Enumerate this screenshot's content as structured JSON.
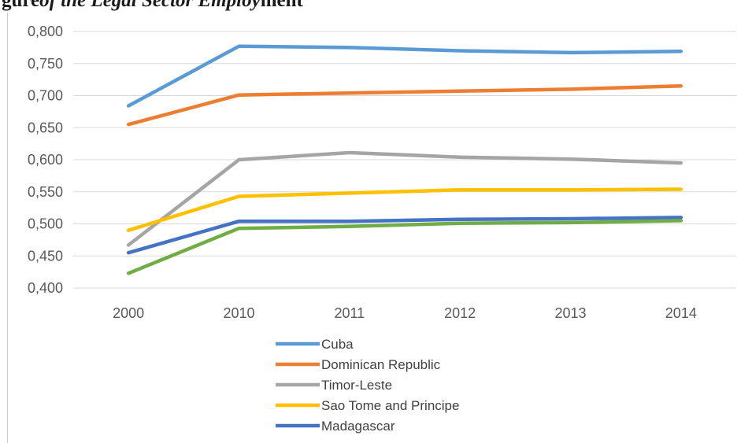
{
  "figure": {
    "cut_title_lead": "gure",
    "cut_title_italic": "of the Legal Sector Employ",
    "cut_title_tail": "ment"
  },
  "chart_data": {
    "type": "line",
    "categories": [
      "2000",
      "2010",
      "2011",
      "2012",
      "2013",
      "2014"
    ],
    "ylim": [
      0.4,
      0.8
    ],
    "yticks": [
      "0,400",
      "0,450",
      "0,500",
      "0,550",
      "0,600",
      "0,650",
      "0,700",
      "0,750",
      "0,800"
    ],
    "grid": true,
    "legend_position": "bottom",
    "series": [
      {
        "name": "Cuba",
        "color": "#5B9BD5",
        "values": [
          0.684,
          0.777,
          0.775,
          0.77,
          0.767,
          0.769
        ]
      },
      {
        "name": "Dominican Republic",
        "color": "#ED7D31",
        "values": [
          0.655,
          0.701,
          0.704,
          0.707,
          0.71,
          0.715
        ]
      },
      {
        "name": "Timor-Leste",
        "color": "#A5A5A5",
        "values": [
          0.467,
          0.6,
          0.611,
          0.604,
          0.601,
          0.595
        ]
      },
      {
        "name": "Sao Tome and Principe",
        "color": "#FFC000",
        "values": [
          0.49,
          0.543,
          0.548,
          0.553,
          0.553,
          0.554
        ]
      },
      {
        "name": "Madagascar",
        "color": "#4472C4",
        "values": [
          0.455,
          0.504,
          0.504,
          0.507,
          0.508,
          0.51
        ]
      },
      {
        "name": "",
        "color": "#70AD47",
        "values": [
          0.423,
          0.493,
          0.496,
          0.501,
          0.502,
          0.505
        ]
      }
    ]
  }
}
